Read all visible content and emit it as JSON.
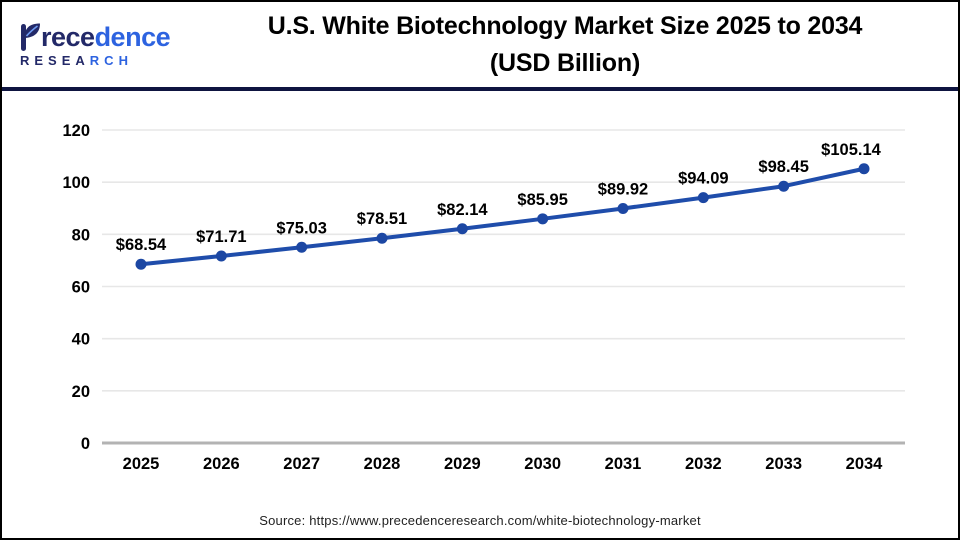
{
  "header": {
    "logo": {
      "word1_dark": "rece",
      "word1_blue": "dence",
      "word2_dark": "RESEA",
      "word2_blue": "RCH",
      "dark_color": "#232968",
      "blue_color": "#2d63e0"
    },
    "title_line1": "U.S. White Biotechnology Market Size 2025 to 2034",
    "title_line2": "(USD Billion)",
    "divider_color": "#0e1440"
  },
  "chart_data": {
    "type": "line",
    "title": "U.S. White Biotechnology Market Size 2025 to 2034 (USD Billion)",
    "categories": [
      "2025",
      "2026",
      "2027",
      "2028",
      "2029",
      "2030",
      "2031",
      "2032",
      "2033",
      "2034"
    ],
    "values": [
      68.54,
      71.71,
      75.03,
      78.51,
      82.14,
      85.95,
      89.92,
      94.09,
      98.45,
      105.14
    ],
    "point_labels": [
      "$68.54",
      "$71.71",
      "$75.03",
      "$78.51",
      "$82.14",
      "$85.95",
      "$89.92",
      "$94.09",
      "$98.45",
      "$105.14"
    ],
    "xlabel": "",
    "ylabel": "",
    "ylim": [
      0,
      120
    ],
    "yticks": [
      0,
      20,
      40,
      60,
      80,
      100,
      120
    ],
    "grid": true,
    "legend": false,
    "line_color": "#1f4dab",
    "marker_color": "#1c47a3",
    "grid_color": "#e7e7e7",
    "axis_color": "#b3b3b3",
    "tick_label_color": "#000000",
    "data_label_color": "#000000"
  },
  "footer": {
    "source": "Source: https://www.precedenceresearch.com/white-biotechnology-market"
  }
}
